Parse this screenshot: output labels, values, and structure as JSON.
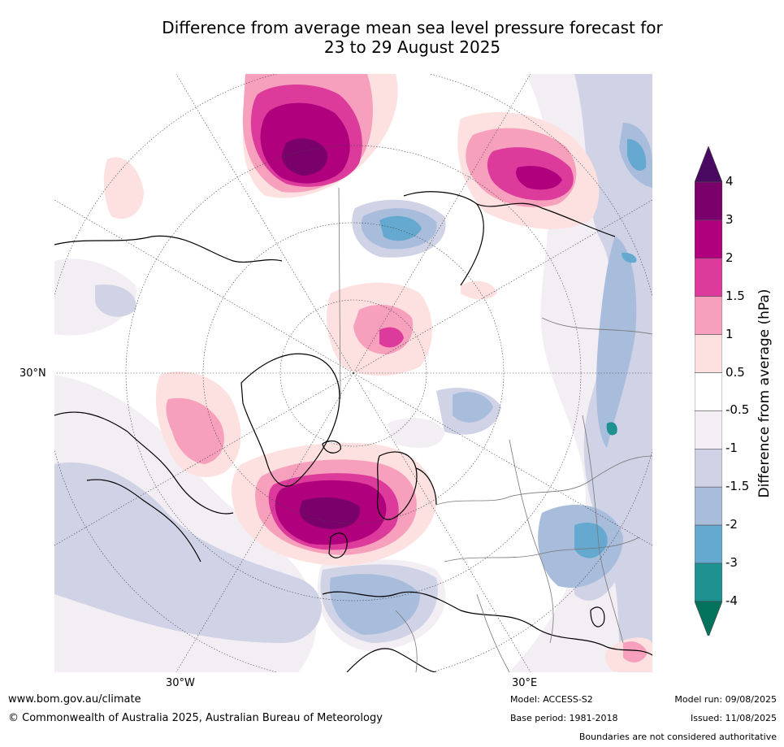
{
  "title": {
    "line1": "Difference from average mean sea level pressure forecast for",
    "line2": "23 to 29 August 2025"
  },
  "map": {
    "lat_label": "30°N",
    "lon_labels": [
      "30°W",
      "30°E"
    ]
  },
  "colorbar": {
    "label": "Difference from average (hPa)",
    "ticks": [
      "4",
      "3",
      "2",
      "1.5",
      "1",
      "0.5",
      "-0.5",
      "-1",
      "-1.5",
      "-2",
      "-3",
      "-4"
    ],
    "colors": [
      "#4a0a62",
      "#7a006b",
      "#b0007d",
      "#dc3b9c",
      "#f7a0bd",
      "#fde0e0",
      "#ffffff",
      "#f2eef4",
      "#d0d2e6",
      "#a8bcdb",
      "#66a9d0",
      "#1e9191",
      "#03735d"
    ]
  },
  "footer": {
    "website": "www.bom.gov.au/climate",
    "copyright": "© Commonwealth of Australia 2025, Australian Bureau of Meteorology",
    "model": "Model: ACCESS-S2",
    "base_period": "Base period: 1981-2018",
    "model_run": "Model run: 09/08/2025",
    "issued": "Issued: 11/08/2025",
    "boundaries": "Boundaries are not considered authoritative"
  }
}
